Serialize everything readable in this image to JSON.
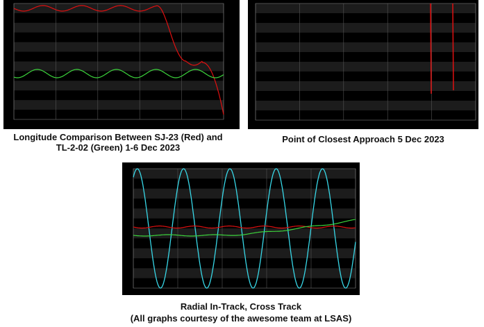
{
  "captions": [
    {
      "lines": [
        "Longitude Comparison Between SJ-23 (Red) and",
        "TL-2-02 (Green) 1-6 Dec 2023"
      ]
    },
    {
      "lines": [
        "Point of Closest Approach 5 Dec 2023"
      ]
    },
    {
      "lines": [
        "Radial In-Track, Cross Track",
        "(All graphs courtesy of the awesome team at LSAS)"
      ]
    }
  ]
}
